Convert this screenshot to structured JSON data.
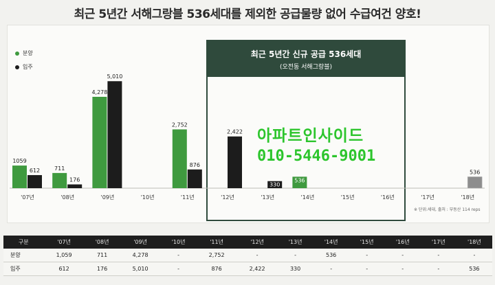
{
  "title": "최근 5년간 서해그랑블 536세대를 제외한 공급물량 없어 수급여건 양호!",
  "highlight": {
    "title": "최근 5년간 신규 공급 536세대",
    "subtitle": "(오전동 서해그랑블)"
  },
  "watermark": {
    "line1": "아파트인사이드",
    "line2": "010-5446-9001"
  },
  "note": "※ 단위:세대, 출처 : 부동산 114 reps",
  "colors": {
    "supply": "#3f9a3f",
    "movein": "#1c1c1c",
    "future_movein": "#8d8d8d",
    "highlight": "#2f4a3c"
  },
  "chart_data": {
    "type": "bar",
    "categories": [
      "'07년",
      "'08년",
      "'09년",
      "'10년",
      "'11년",
      "'12년",
      "'13년",
      "'14년",
      "'15년",
      "'16년",
      "'17년",
      "'18년"
    ],
    "series": [
      {
        "name": "분양",
        "values": [
          1059,
          711,
          4278,
          null,
          2752,
          null,
          null,
          536,
          null,
          null,
          null,
          null
        ]
      },
      {
        "name": "입주",
        "values": [
          612,
          176,
          5010,
          null,
          876,
          2422,
          330,
          null,
          null,
          null,
          null,
          536
        ]
      }
    ],
    "value_labels": {
      "분양": [
        "1059",
        "711",
        "4,278",
        "",
        "2,752",
        "",
        "",
        "536",
        "",
        "",
        "",
        ""
      ],
      "입주": [
        "612",
        "176",
        "5,010",
        "",
        "876",
        "2,422",
        "330",
        "",
        "",
        "",
        "",
        "536"
      ]
    },
    "legend": {
      "position": "top-left",
      "entries": [
        "분양",
        "입주"
      ]
    },
    "ylim": [
      0,
      5500
    ],
    "grid": false
  },
  "table": {
    "header": [
      "구분",
      "'07년",
      "'08년",
      "'09년",
      "'10년",
      "'11년",
      "'12년",
      "'13년",
      "'14년",
      "'15년",
      "'16년",
      "'17년",
      "'18년"
    ],
    "rows": [
      [
        "분양",
        "1,059",
        "711",
        "4,278",
        "-",
        "2,752",
        "-",
        "-",
        "536",
        "-",
        "-",
        "-",
        "-"
      ],
      [
        "입주",
        "612",
        "176",
        "5,010",
        "-",
        "876",
        "2,422",
        "330",
        "-",
        "-",
        "-",
        "-",
        "536"
      ]
    ]
  }
}
